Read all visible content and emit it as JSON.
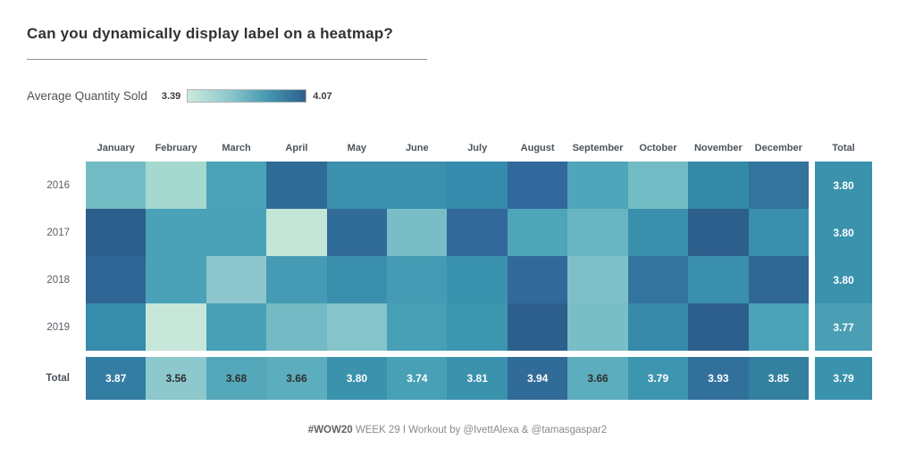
{
  "title": "Can you dynamically display label on a heatmap?",
  "legend": {
    "label": "Average Quantity Sold",
    "min": "3.39",
    "max": "4.07",
    "gradient": [
      "#cde9dd",
      "#8cc8cc",
      "#4597b1",
      "#2d5f8c"
    ]
  },
  "footer": {
    "tag": "#WOW20",
    "rest": " WEEK 29 I Workout by @IvettAlexa & @tamasgaspar2"
  },
  "chart_data": {
    "type": "heatmap",
    "title": "Average Quantity Sold",
    "legend_range": [
      3.39,
      4.07
    ],
    "columns": [
      "January",
      "February",
      "March",
      "April",
      "May",
      "June",
      "July",
      "August",
      "September",
      "October",
      "November",
      "December"
    ],
    "rows": [
      "2016",
      "2017",
      "2018",
      "2019"
    ],
    "total_label": "Total",
    "cell_colors": [
      [
        "#74bcc5",
        "#a5d8cf",
        "#4ba3b8",
        "#2f6b96",
        "#3a90ad",
        "#3a90ad",
        "#358bab",
        "#32689b",
        "#4fa5b9",
        "#74bcc5",
        "#3489a9",
        "#32749c"
      ],
      [
        "#2d5f8c",
        "#4aa2b8",
        "#4aa2b8",
        "#c3e6d9",
        "#316b97",
        "#79bec7",
        "#32699a",
        "#4fa5b8",
        "#68b4c2",
        "#3a8fac",
        "#2d5f8c",
        "#3a8fac"
      ],
      [
        "#2e6594",
        "#4aa2b8",
        "#8cc6cc",
        "#449bb3",
        "#3a8fac",
        "#449bb3",
        "#3a93ae",
        "#32699a",
        "#7fc0c8",
        "#33749f",
        "#3a8fac",
        "#2f6795"
      ],
      [
        "#368cab",
        "#c7e7da",
        "#47a0b6",
        "#74bac4",
        "#85c4ca",
        "#47a0b6",
        "#3d96b0",
        "#2d5f8c",
        "#79bdc6",
        "#3789a9",
        "#2d5f8c",
        "#4ba3b7"
      ]
    ],
    "column_totals": [
      {
        "value": "3.87",
        "color": "#337ca2",
        "text_color": "#ffffff"
      },
      {
        "value": "3.56",
        "color": "#8cc8cc",
        "text_color": "#2f2f2f"
      },
      {
        "value": "3.68",
        "color": "#54a8ba",
        "text_color": "#2f2f2f"
      },
      {
        "value": "3.66",
        "color": "#5cadbd",
        "text_color": "#2f2f2f"
      },
      {
        "value": "3.80",
        "color": "#3a92ad",
        "text_color": "#ffffff"
      },
      {
        "value": "3.74",
        "color": "#47a0b6",
        "text_color": "#ffffff"
      },
      {
        "value": "3.81",
        "color": "#3a92ad",
        "text_color": "#ffffff"
      },
      {
        "value": "3.94",
        "color": "#316b97",
        "text_color": "#ffffff"
      },
      {
        "value": "3.66",
        "color": "#5cadbd",
        "text_color": "#2f2f2f"
      },
      {
        "value": "3.79",
        "color": "#3d95af",
        "text_color": "#ffffff"
      },
      {
        "value": "3.93",
        "color": "#32709c",
        "text_color": "#ffffff"
      },
      {
        "value": "3.85",
        "color": "#33809f",
        "text_color": "#ffffff"
      }
    ],
    "row_totals": [
      {
        "value": "3.80",
        "color": "#3a92ad",
        "text_color": "#ffffff"
      },
      {
        "value": "3.80",
        "color": "#3a92ad",
        "text_color": "#ffffff"
      },
      {
        "value": "3.80",
        "color": "#3a92ad",
        "text_color": "#ffffff"
      },
      {
        "value": "3.77",
        "color": "#4a9fb5",
        "text_color": "#ffffff"
      }
    ],
    "grand_total": {
      "value": "3.79",
      "color": "#3a92ad",
      "text_color": "#ffffff"
    }
  }
}
